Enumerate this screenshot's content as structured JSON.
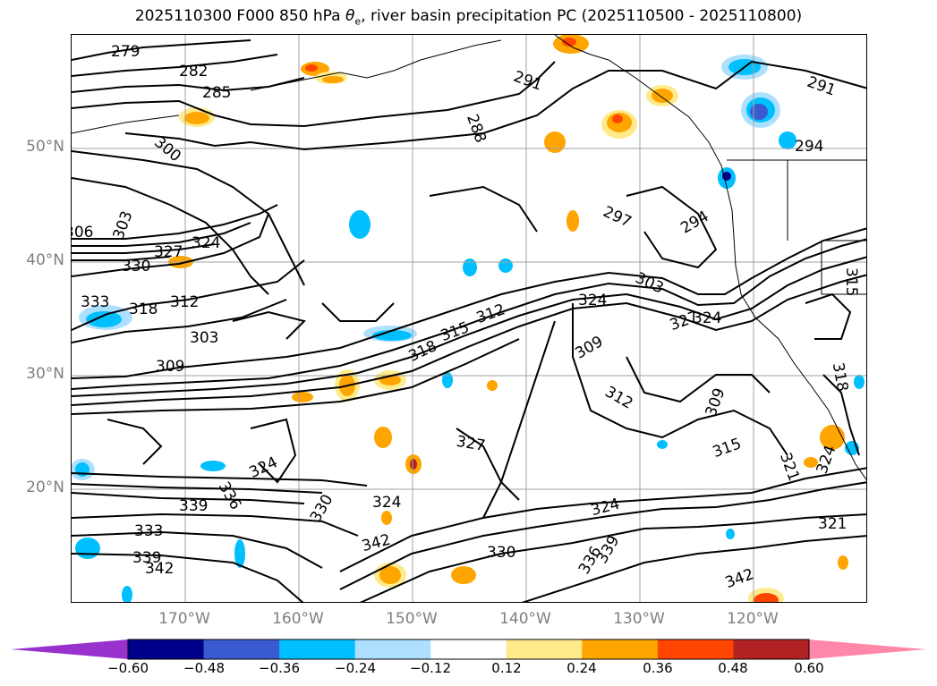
{
  "title": "2025110300 F000 850 hPa θe, river basin precipitation PC (2025110500 - 2025110800)",
  "title_main": "2025110300 F000 850 hPa ",
  "title_theta": "θ",
  "title_sub": "e",
  "title_rest": ", river basin precipitation PC (2025110500 - 2025110800)",
  "lat_labels": [
    "50°N",
    "40°N",
    "30°N",
    "20°N"
  ],
  "lon_labels": [
    "170°W",
    "160°W",
    "150°W",
    "140°W",
    "130°W",
    "120°W"
  ],
  "contour_labels": [
    "279",
    "282",
    "285",
    "288",
    "291",
    "291",
    "294",
    "297",
    "294",
    "300",
    "303",
    "330",
    "327",
    "324",
    "318",
    "312",
    "303",
    "309",
    "318",
    "315",
    "312",
    "324",
    "303",
    "327",
    "324",
    "309",
    "312",
    "309",
    "315",
    "327",
    "324",
    "336",
    "339",
    "333",
    "339",
    "342",
    "330",
    "324",
    "342",
    "330",
    "336",
    "339",
    "324",
    "342",
    "321",
    "324",
    "321",
    "315",
    "318",
    "333",
    "306"
  ],
  "colorbar": {
    "ticks": [
      "−0.60",
      "−0.48",
      "−0.36",
      "−0.24",
      "−0.12",
      "0.12",
      "0.24",
      "0.36",
      "0.48",
      "0.60"
    ],
    "colors": [
      "#9932CC",
      "#00008B",
      "#3A5BD0",
      "#00BFFF",
      "#ADE0FF",
      "#FFFFFF",
      "#FFEB8C",
      "#FFA500",
      "#FF4500",
      "#B22222",
      "#FF88AA"
    ]
  },
  "colors": {
    "contour": "#000000",
    "grid": "#a0a0a0",
    "axis_label": "#7f7f7f"
  }
}
